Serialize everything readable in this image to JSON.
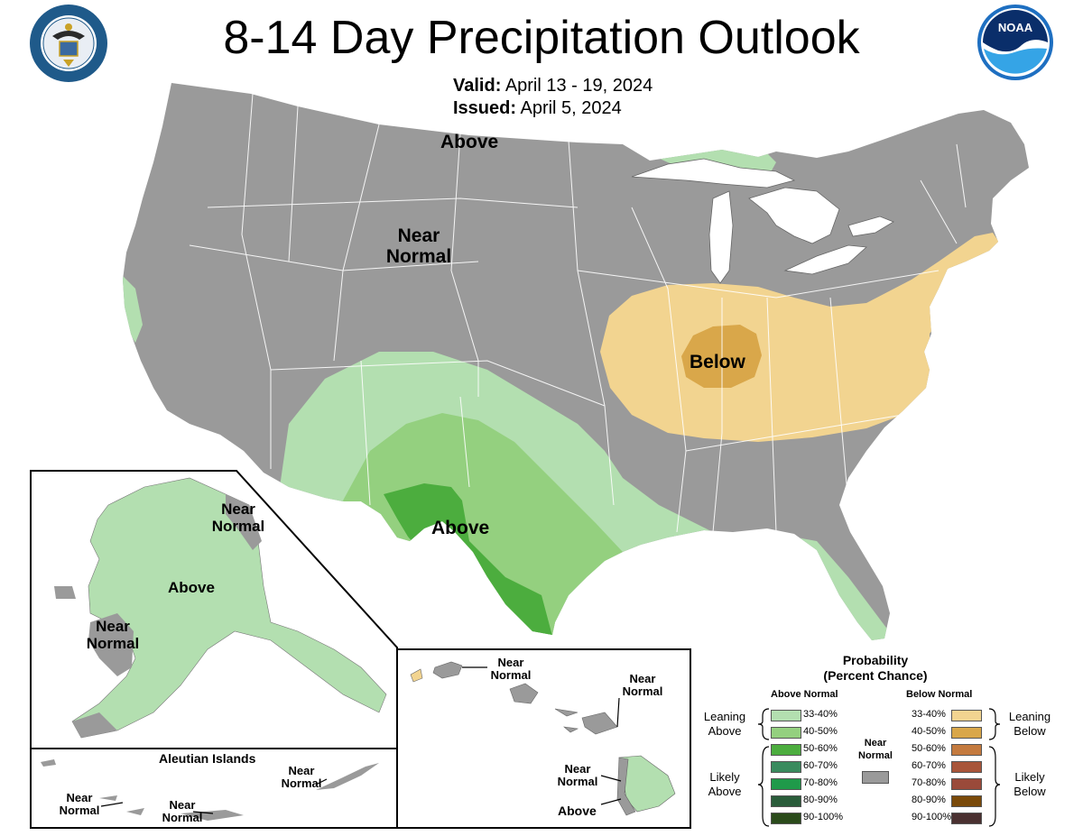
{
  "title": "8-14 Day Precipitation Outlook",
  "valid_label": "Valid:",
  "valid_value": "April 13 - 19, 2024",
  "issued_label": "Issued:",
  "issued_value": "April 5, 2024",
  "seal_text": "DEPARTMENT OF COMMERCE · UNITED STATES OF AMERICA",
  "noaa_text": "NOAA",
  "colors": {
    "near_normal": "#9a9a9a",
    "above_33_40": "#b3dfb0",
    "above_40_50": "#94d07f",
    "above_50_60": "#4cad3e",
    "below_33_40": "#f2d490",
    "below_40_50": "#d9a74a",
    "lake": "#ffffff"
  },
  "conus_labels": {
    "above_north": "Above",
    "near_normal_line1": "Near",
    "near_normal_line2": "Normal",
    "below": "Below",
    "above_south": "Above"
  },
  "alaska_labels": {
    "near_ne_line1": "Near",
    "near_ne_line2": "Normal",
    "above": "Above",
    "near_w_line1": "Near",
    "near_w_line2": "Normal"
  },
  "aleutian": {
    "title": "Aleutian Islands",
    "near_a_line1": "Near",
    "near_a_line2": "Normal",
    "near_b_line1": "Near",
    "near_b_line2": "Normal",
    "near_c_line1": "Near",
    "near_c_line2": "Normal"
  },
  "hawaii_labels": {
    "near_a_line1": "Near",
    "near_a_line2": "Normal",
    "near_b_line1": "Near",
    "near_b_line2": "Normal",
    "near_c_line1": "Near",
    "near_c_line2": "Normal",
    "above": "Above"
  },
  "legend": {
    "title_line1": "Probability",
    "title_line2": "(Percent Chance)",
    "above_header": "Above Normal",
    "below_header": "Below Normal",
    "near_line1": "Near",
    "near_line2": "Normal",
    "leaning_above_line1": "Leaning",
    "leaning_above_line2": "Above",
    "likely_above_line1": "Likely",
    "likely_above_line2": "Above",
    "leaning_below_line1": "Leaning",
    "leaning_below_line2": "Below",
    "likely_below_line1": "Likely",
    "likely_below_line2": "Below",
    "above_items": [
      {
        "label": "33-40%",
        "color": "#b3dfb0"
      },
      {
        "label": "40-50%",
        "color": "#94d07f"
      },
      {
        "label": "50-60%",
        "color": "#4cad3e"
      },
      {
        "label": "60-70%",
        "color": "#3a8b5e"
      },
      {
        "label": "70-80%",
        "color": "#1f9a4a"
      },
      {
        "label": "80-90%",
        "color": "#2a5c3a"
      },
      {
        "label": "90-100%",
        "color": "#2a4a1a"
      }
    ],
    "below_items": [
      {
        "label": "33-40%",
        "color": "#f2d490"
      },
      {
        "label": "40-50%",
        "color": "#d9a74a"
      },
      {
        "label": "50-60%",
        "color": "#c47a3e"
      },
      {
        "label": "60-70%",
        "color": "#a8553a"
      },
      {
        "label": "70-80%",
        "color": "#9a4a3a"
      },
      {
        "label": "80-90%",
        "color": "#7a4a0a"
      },
      {
        "label": "90-100%",
        "color": "#4a3030"
      }
    ],
    "near_color": "#9a9a9a"
  }
}
